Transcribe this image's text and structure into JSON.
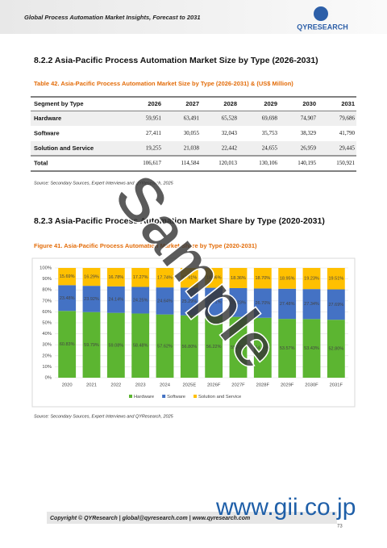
{
  "header": {
    "title": "Global Process Automation Market Insights, Forecast to 2031",
    "logo": "QYRESEARCH"
  },
  "section1": {
    "heading": "8.2.2 Asia-Pacific Process Automation Market Size by Type (2026-2031)",
    "caption": "Table 42. Asia-Pacific Process Automation Market Size by Type (2026-2031) & (US$ Million)",
    "source": "Source: Secondary Sources, Expert Interviews and QYResearch, 2025"
  },
  "table": {
    "columns": [
      "Segment by Type",
      "2026",
      "2027",
      "2028",
      "2029",
      "2030",
      "2031"
    ],
    "rows": [
      [
        "Hardware",
        "59,951",
        "63,491",
        "65,528",
        "69,698",
        "74,907",
        "79,686"
      ],
      [
        "Software",
        "27,411",
        "30,055",
        "32,043",
        "35,753",
        "38,329",
        "41,790"
      ],
      [
        "Solution and Service",
        "19,255",
        "21,038",
        "22,442",
        "24,655",
        "26,959",
        "29,445"
      ],
      [
        "Total",
        "106,617",
        "114,584",
        "120,013",
        "130,106",
        "140,195",
        "150,921"
      ]
    ]
  },
  "section2": {
    "heading": "8.2.3 Asia-Pacific Process Automation Market Share by Type (2020-2031)",
    "caption": "Figure 41. Asia-Pacific Process Automation Market Share by Type (2020-2031)",
    "source": "Source: Secondary Sources, Expert Interviews and QYResearch, 2025"
  },
  "chart_data": {
    "type": "stacked_bar",
    "categories": [
      "2020",
      "2021",
      "2022",
      "2023",
      "2024",
      "2025E",
      "2026F",
      "2027F",
      "2028F",
      "2029F",
      "2030F",
      "2031F"
    ],
    "series": [
      {
        "name": "Hardware",
        "color": "#5cb531",
        "values": [
          60.83,
          59.79,
          59.08,
          58.48,
          57.62,
          56.8,
          56.22,
          55.41,
          54.6,
          53.57,
          53.43,
          52.8
        ],
        "value_labels": [
          "60.83%",
          "59.79%",
          "59.08%",
          "58.48%",
          "57.62%",
          "56.80%",
          "56.22%",
          "55.41%",
          "54.60%",
          "53.57%",
          "53.43%",
          "52.80%"
        ]
      },
      {
        "name": "Software",
        "color": "#4472c4",
        "values": [
          23.48,
          23.92,
          24.14,
          24.25,
          24.64,
          25.29,
          25.71,
          26.23,
          26.7,
          27.48,
          27.34,
          27.69
        ],
        "value_labels": [
          "23.48%",
          "23.92%",
          "24.14%",
          "24.25%",
          "24.64%",
          "25.29%",
          "25.71%",
          "26.23%",
          "26.70%",
          "27.48%",
          "27.34%",
          "27.69%"
        ]
      },
      {
        "name": "Solution and Service",
        "color": "#ffc000",
        "values": [
          15.69,
          16.29,
          16.78,
          17.27,
          17.74,
          17.91,
          18.06,
          18.36,
          18.7,
          18.95,
          19.23,
          19.51
        ],
        "value_labels": [
          "15.69%",
          "16.29%",
          "16.78%",
          "17.27%",
          "17.74%",
          "17.91%",
          "18.06%",
          "18.36%",
          "18.70%",
          "18.95%",
          "19.23%",
          "19.51%"
        ]
      }
    ],
    "ylim": [
      0,
      100
    ],
    "yticks": [
      {
        "value": 0,
        "label": "0%"
      },
      {
        "value": 10,
        "label": "10%"
      },
      {
        "value": 20,
        "label": "20%"
      },
      {
        "value": 30,
        "label": "30%"
      },
      {
        "value": 40,
        "label": "40%"
      },
      {
        "value": 50,
        "label": "50%"
      },
      {
        "value": 60,
        "label": "60%"
      },
      {
        "value": 70,
        "label": "70%"
      },
      {
        "value": 80,
        "label": "80%"
      },
      {
        "value": 90,
        "label": "90%"
      },
      {
        "value": 100,
        "label": "100%"
      }
    ],
    "grid": true,
    "legend": "bottom"
  },
  "footer": {
    "copyright": "Copyright © QYResearch | global@qyresearch.com | www.qyresearch.com",
    "page": "73"
  },
  "watermark": "Sample",
  "site": "www.gii.co.jp"
}
